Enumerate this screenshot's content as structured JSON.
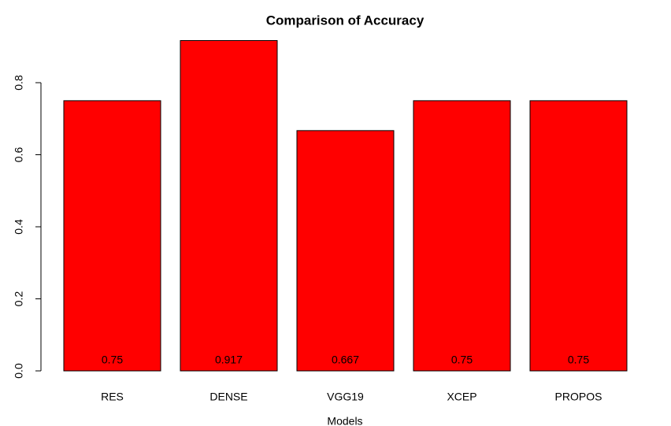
{
  "chart_data": {
    "type": "bar",
    "title": "Comparison of Accuracy",
    "x_label": "Models",
    "categories": [
      "RES",
      "DENSE",
      "VGG19",
      "XCEP",
      "PROPOS"
    ],
    "values": [
      0.75,
      0.917,
      0.667,
      0.75,
      0.75
    ],
    "color": "#ff0000",
    "ylim": [
      0,
      1
    ],
    "yticks": [
      {
        "value": 0,
        "label": "0.0"
      },
      0.2,
      0.4,
      0.6,
      0.8
    ],
    "grid": false
  }
}
